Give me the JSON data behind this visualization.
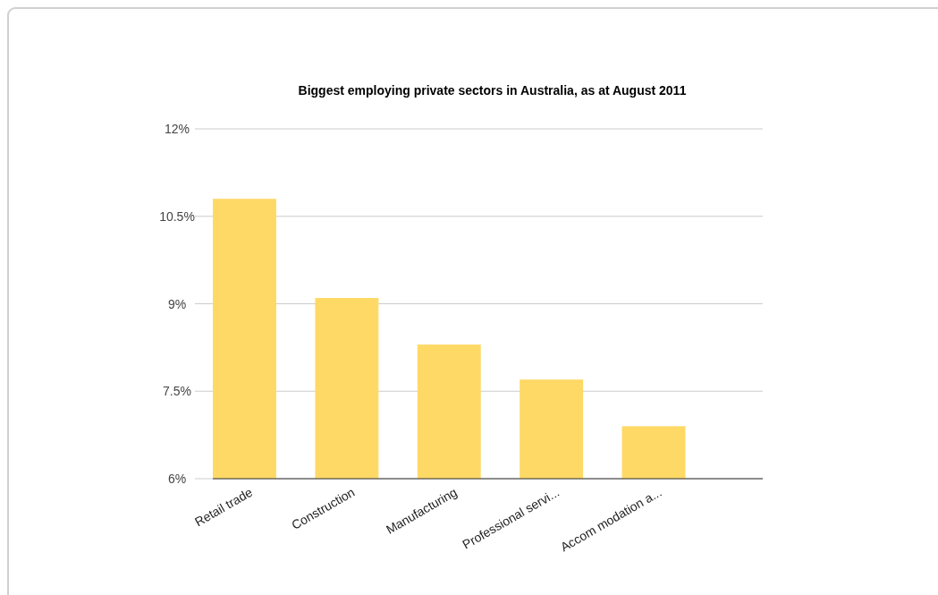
{
  "chart_data": {
    "type": "bar",
    "title": "Biggest employing private sectors in Australia, as at August 2011",
    "categories": [
      "Retail trade",
      "Construction",
      "Manufacturing",
      "Professional servi...",
      "Accom modation a..."
    ],
    "values": [
      10.8,
      9.1,
      8.3,
      7.7,
      6.9
    ],
    "color": "#ffd966",
    "ylim": [
      6,
      12
    ],
    "yticks": [
      {
        "value": 6,
        "label": "6%"
      },
      {
        "value": 7.5,
        "label": "7.5%"
      },
      {
        "value": 9,
        "label": "9%"
      },
      {
        "value": 10.5,
        "label": "10.5%"
      },
      {
        "value": 12,
        "label": "12%"
      }
    ],
    "grid": "y"
  }
}
